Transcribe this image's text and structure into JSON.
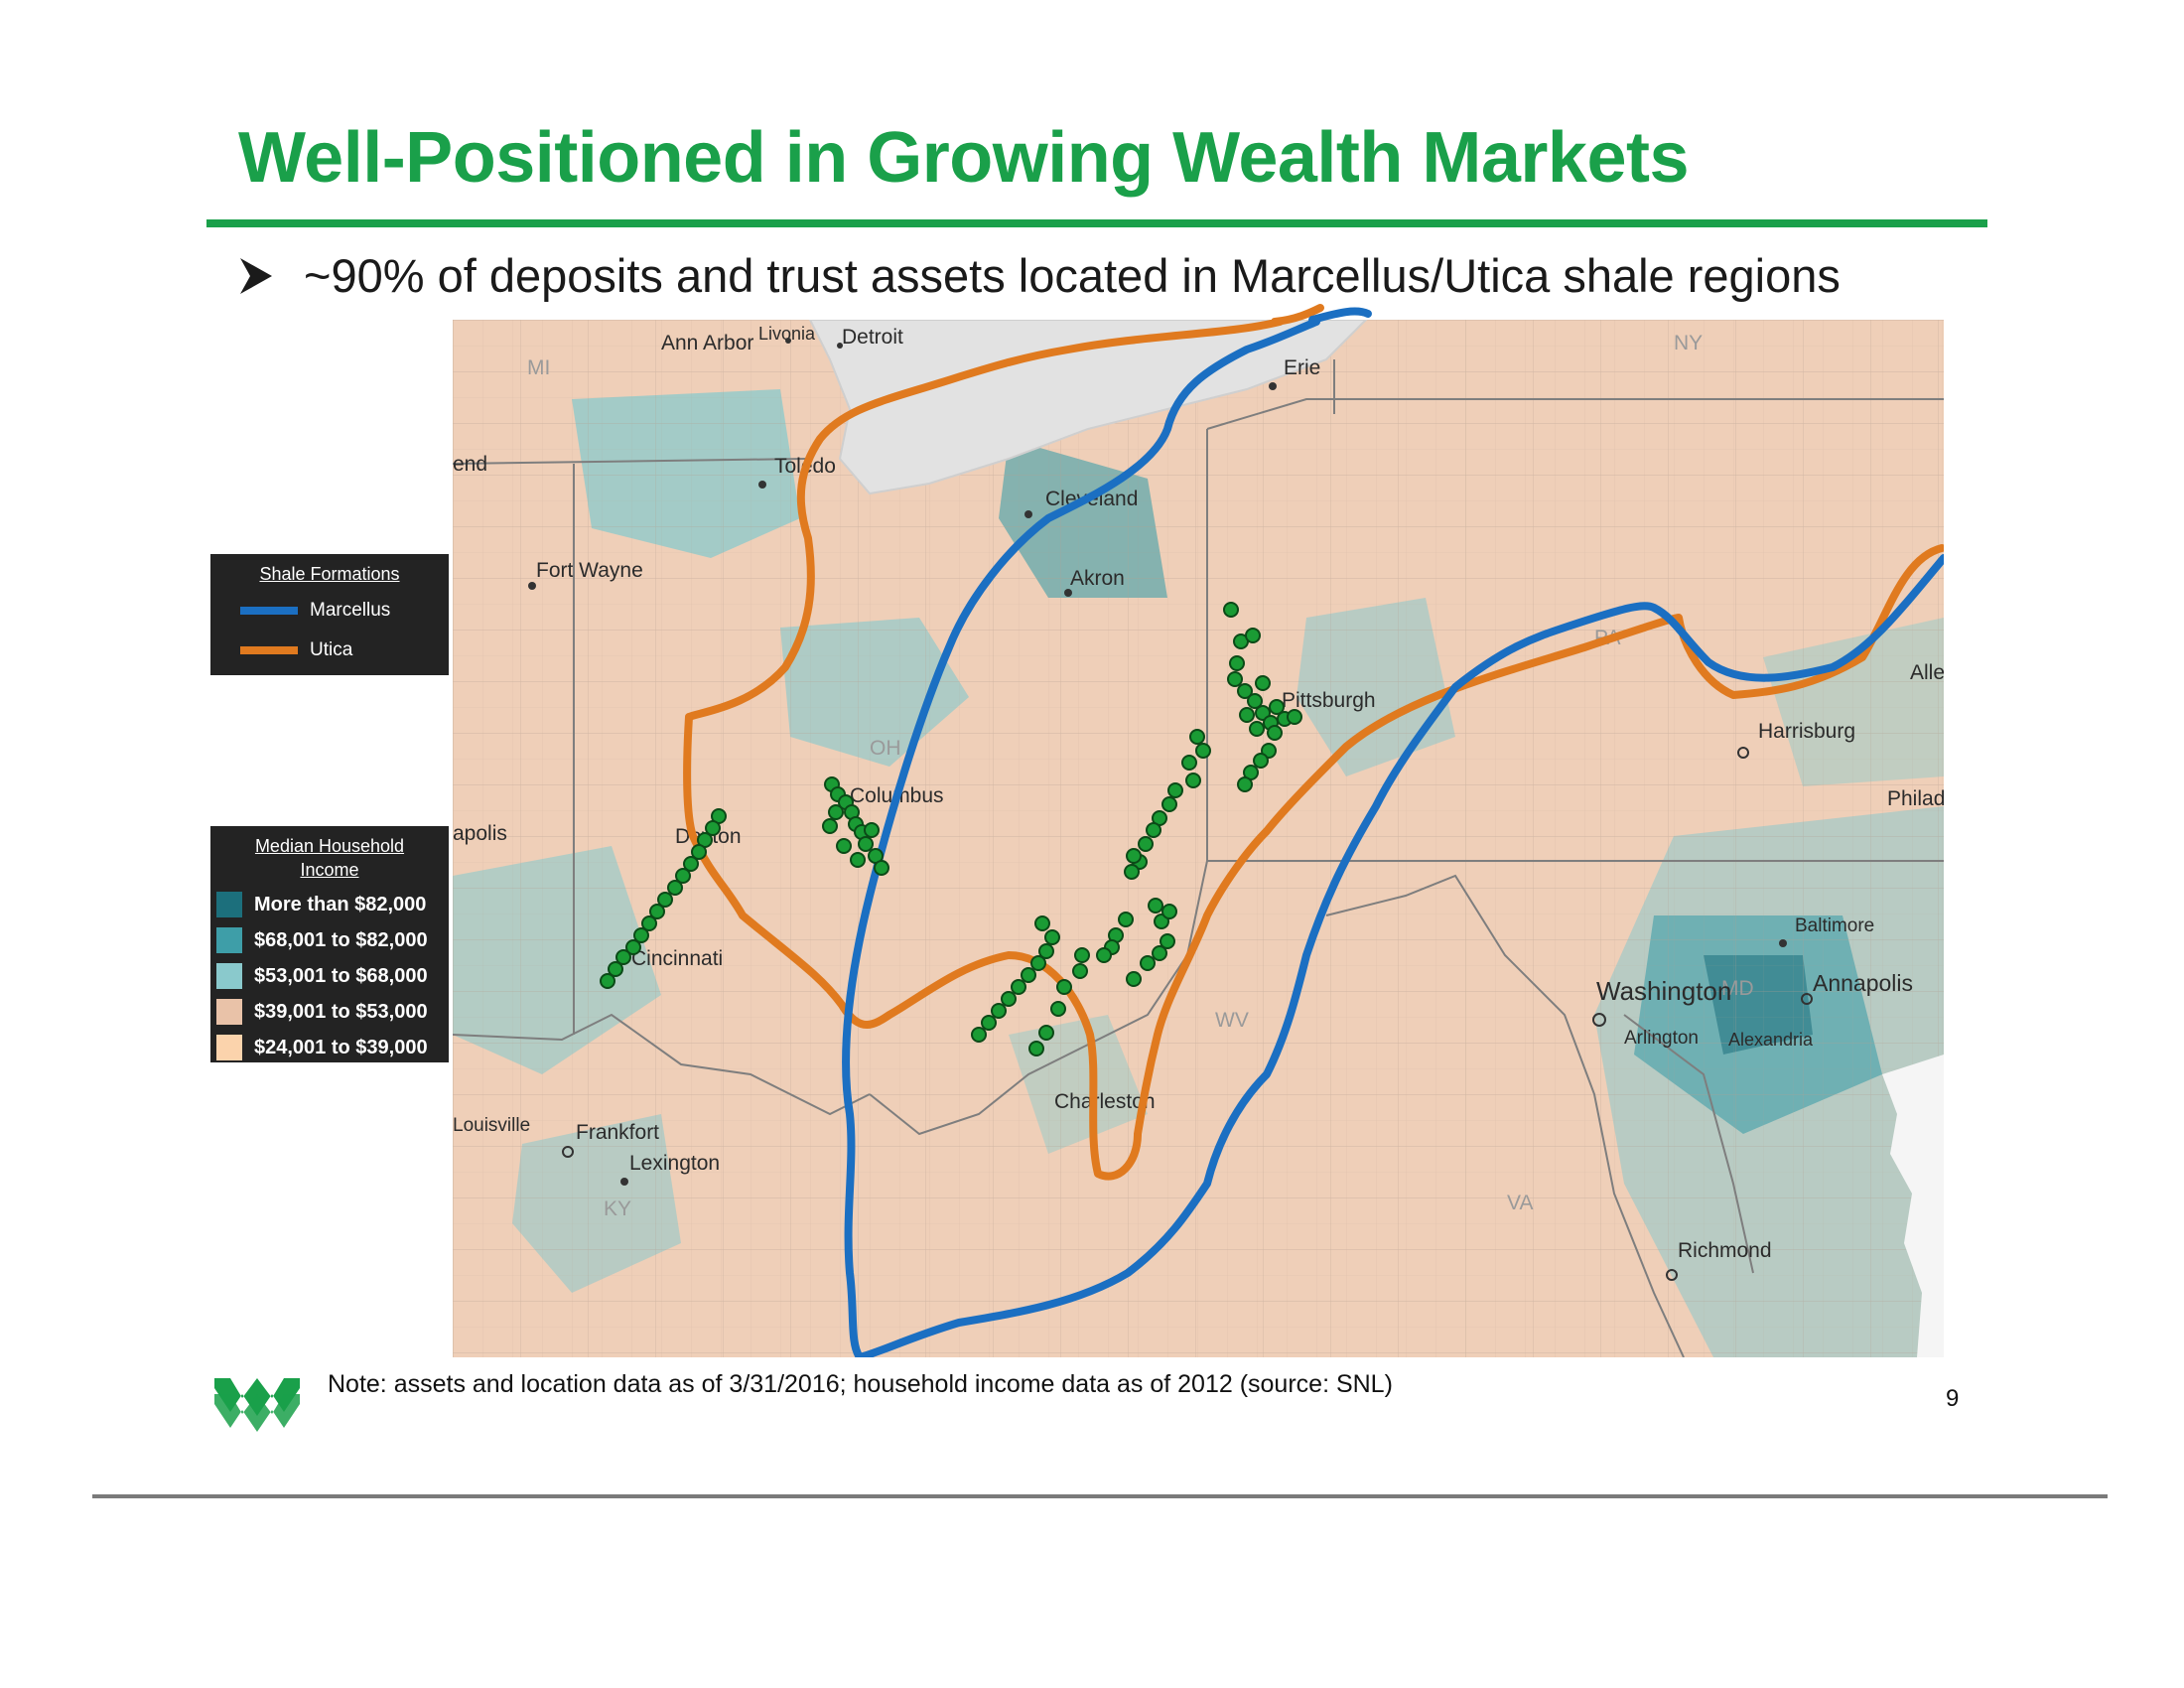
{
  "slide": {
    "title": "Well-Positioned in Growing Wealth Markets",
    "bullet_icon": "arrowhead-bullet-icon",
    "bullet": "~90% of deposits and trust assets located in Marcellus/Utica shale regions",
    "footnote": "Note: assets and location data as of 3/31/2016; household income data as of 2012 (source: SNL)",
    "page_number": "9",
    "logo_icon": "wesbanco-w-logo-icon",
    "accent_color": "#1aa04a"
  },
  "legend_shale": {
    "heading": "Shale Formations",
    "items": [
      {
        "label": "Marcellus",
        "color": "#1b6fc2"
      },
      {
        "label": "Utica",
        "color": "#e07a1f"
      }
    ]
  },
  "legend_income": {
    "heading_line1": "Median Household",
    "heading_line2": "Income",
    "items": [
      {
        "label": "More than $82,000",
        "color": "#1c6f7c"
      },
      {
        "label": "$68,001 to $82,000",
        "color": "#3e9ea8"
      },
      {
        "label": "$53,001 to $68,000",
        "color": "#8ac9cc"
      },
      {
        "label": "$39,001 to $53,000",
        "color": "#e9c2a8"
      },
      {
        "label": "$24,001 to $39,000",
        "color": "#fbd3ac"
      }
    ]
  },
  "map": {
    "water_color": "#e2e2e2",
    "base_color": "#efcfb8",
    "branch_color": "#1a9b34",
    "state_labels": [
      "MI",
      "OH",
      "PA",
      "NY",
      "WV",
      "MD",
      "VA",
      "KY"
    ],
    "cities": [
      "Livonia",
      "Ann Arbor",
      "Detroit",
      "Erie",
      "Toledo",
      "Cleveland",
      "Akron",
      "Fort Wayne",
      "end",
      "apolis",
      "Columbus",
      "Dayton",
      "Cincinnati",
      "Pittsburgh",
      "Harrisburg",
      "Alle",
      "Philad",
      "Baltimore",
      "Washington",
      "Annapolis",
      "Arlington",
      "Alexandria",
      "Charleston",
      "Louisville",
      "Frankfort",
      "Lexington",
      "Richmond"
    ]
  }
}
